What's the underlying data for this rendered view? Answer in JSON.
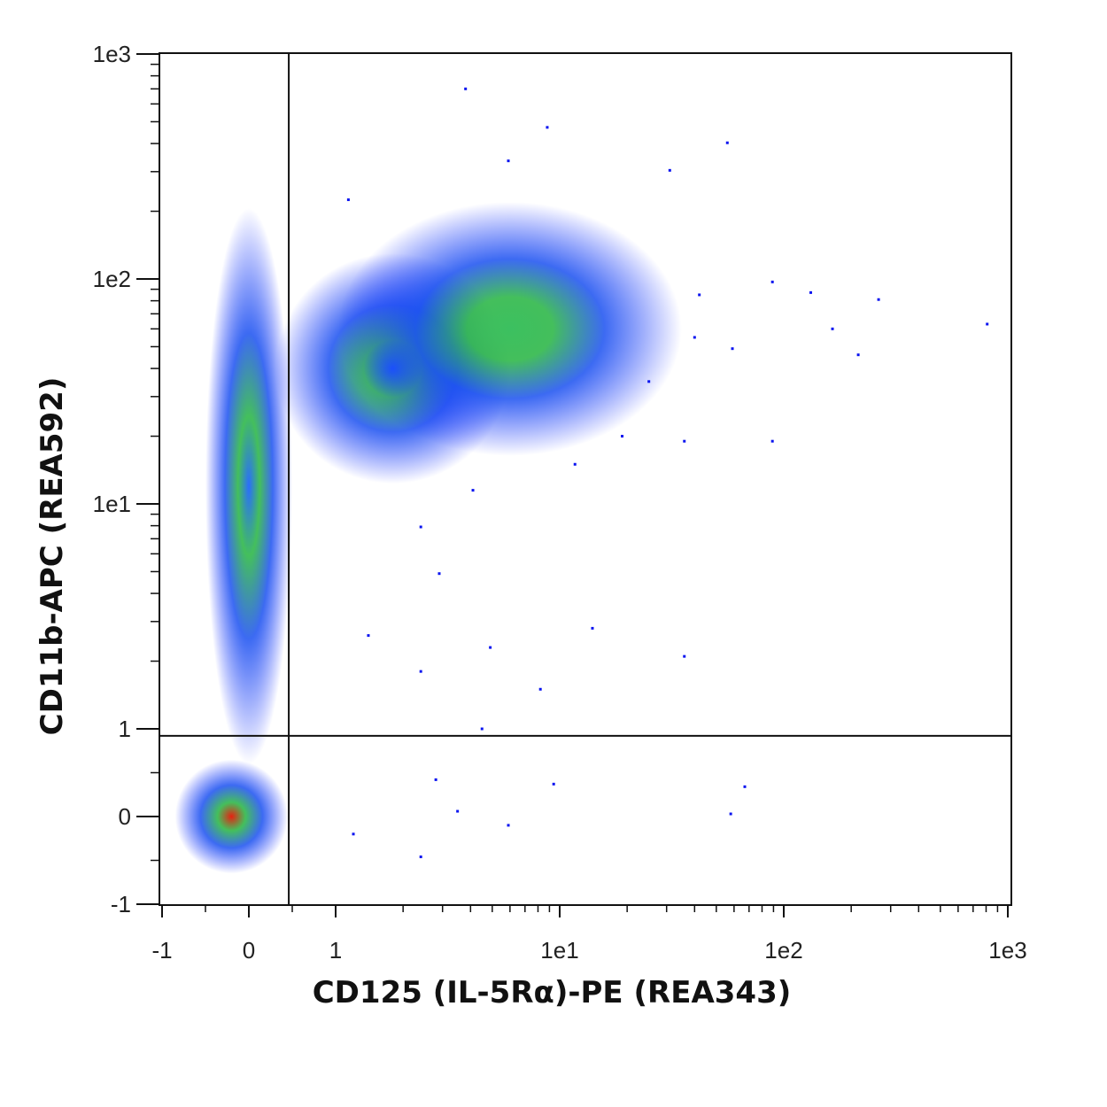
{
  "chart_data": {
    "type": "scatter",
    "x_label": "CD125 (IL-5Rα)-PE (REA343)",
    "y_label": "CD11b-APC (REA592)",
    "scale": "biexponential",
    "xlim": [
      -1,
      1000
    ],
    "ylim": [
      -1,
      1000
    ],
    "xticks": [
      -1,
      0,
      1,
      {
        "value": 10,
        "label": "1e1"
      },
      {
        "value": 100,
        "label": "1e2"
      },
      {
        "value": 1000,
        "label": "1e3"
      }
    ],
    "yticks": [
      -1,
      0,
      1,
      {
        "value": 10,
        "label": "1e1"
      },
      {
        "value": 100,
        "label": "1e2"
      },
      {
        "value": 1000,
        "label": "1e3"
      }
    ],
    "xminor": [
      -0.5,
      0.5,
      2,
      3,
      4,
      5,
      6,
      7,
      8,
      9,
      20,
      30,
      40,
      50,
      60,
      70,
      80,
      90,
      200,
      300,
      400,
      500,
      600,
      700,
      800,
      900
    ],
    "yminor": [
      -0.5,
      0.5,
      2,
      3,
      4,
      5,
      6,
      7,
      8,
      9,
      20,
      30,
      40,
      50,
      60,
      70,
      80,
      90,
      200,
      300,
      400,
      500,
      600,
      700,
      800,
      900
    ],
    "gates": {
      "x": 0.46,
      "y": 0.92
    },
    "populations": [
      {
        "x": 0,
        "y": 12,
        "x_range": [
          -0.5,
          0.45
        ],
        "y_range": [
          0.6,
          90
        ],
        "peak_color": "#2a6cff"
      },
      {
        "x": 1.8,
        "y": 40,
        "x_range": [
          0.5,
          6
        ],
        "y_range": [
          15,
          130
        ],
        "peak_color": "#1c5cff"
      },
      {
        "x": 6,
        "y": 60,
        "x_range": [
          2.5,
          35
        ],
        "y_range": [
          28,
          220
        ],
        "peak_color": "#3cc060"
      },
      {
        "x": -0.2,
        "y": 0,
        "x_range": [
          -0.85,
          0.4
        ],
        "y_range": [
          -0.6,
          0.65
        ],
        "peak_color": "#e82010"
      }
    ],
    "color": "#0a14f0",
    "series": [
      {
        "name": "events",
        "x": [
          8.8,
          5.9,
          1.14,
          56,
          809,
          265,
          132,
          89,
          165,
          215,
          89,
          36,
          19,
          25,
          14,
          36,
          8.2,
          67,
          58,
          9.4,
          5.9,
          2.4,
          3.5,
          2.8,
          1.2,
          4.5,
          4.9,
          2.4,
          1.4,
          11.7,
          2.9,
          2.4,
          4.1,
          42,
          40,
          59,
          31,
          3.8
        ],
        "values": [
          472,
          335,
          225,
          403,
          63,
          81,
          87,
          97,
          60,
          46,
          19,
          19,
          20,
          35,
          2.8,
          2.1,
          1.5,
          0.34,
          0.03,
          0.37,
          -0.1,
          -0.46,
          0.06,
          0.42,
          -0.2,
          1.0,
          2.3,
          1.8,
          2.6,
          15,
          4.9,
          7.9,
          11.5,
          85,
          55,
          49,
          304,
          700
        ]
      }
    ]
  }
}
